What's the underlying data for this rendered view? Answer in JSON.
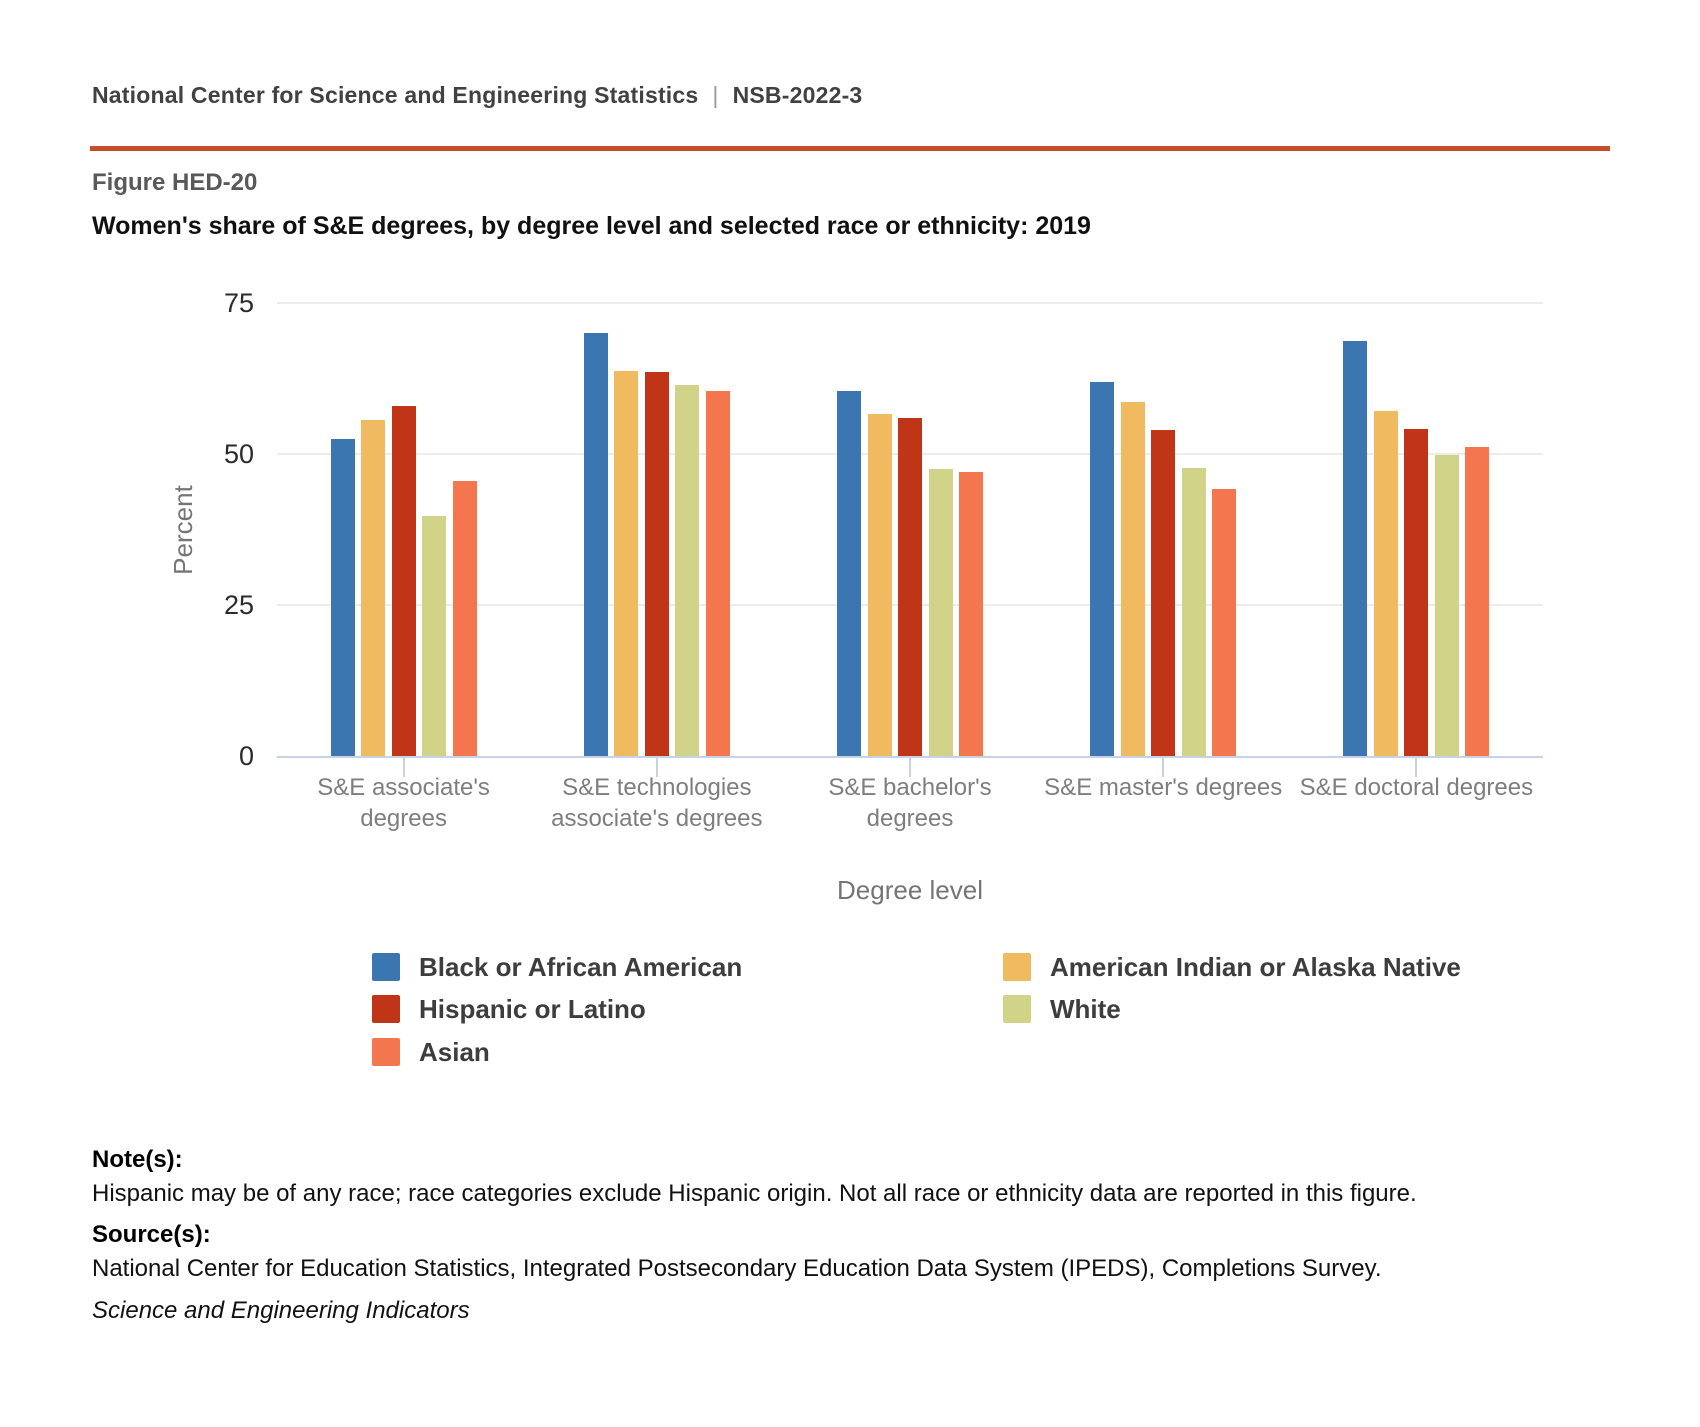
{
  "header": {
    "org": "National Center for Science and Engineering Statistics",
    "separator": "|",
    "report": "NSB-2022-3"
  },
  "accent_rule_color": "#c54e2c",
  "figure": {
    "label": "Figure HED-20",
    "title": "Women's share of S&E degrees, by degree level and selected race or ethnicity: 2019"
  },
  "chart_data": {
    "type": "bar",
    "categories": [
      "S&E associate's\ndegrees",
      "S&E technologies\nassociate's degrees",
      "S&E bachelor's\ndegrees",
      "S&E master's degrees",
      "S&E doctoral degrees"
    ],
    "series": [
      {
        "name": "Black or African American",
        "color": "#3b76b0",
        "values": [
          52.5,
          70.0,
          60.4,
          62.0,
          68.7
        ]
      },
      {
        "name": "American Indian or Alaska Native",
        "color": "#efba60",
        "values": [
          55.6,
          63.7,
          56.7,
          58.6,
          57.2
        ]
      },
      {
        "name": "Hispanic or Latino",
        "color": "#c03418",
        "values": [
          58.0,
          63.5,
          55.9,
          53.9,
          54.2
        ]
      },
      {
        "name": "White",
        "color": "#d1d389",
        "values": [
          39.8,
          61.4,
          47.5,
          47.7,
          49.8
        ]
      },
      {
        "name": "Asian",
        "color": "#f4764f",
        "values": [
          45.6,
          60.5,
          47.0,
          44.2,
          51.2
        ]
      }
    ],
    "title": "Women's share of S&E degrees, by degree level and selected race or ethnicity: 2019",
    "xlabel": "Degree level",
    "ylabel": "Percent",
    "yticks": [
      0,
      25,
      50,
      75
    ],
    "ylim": [
      0,
      75
    ],
    "grid": true,
    "legend_position": "bottom"
  },
  "notes": {
    "label": "Note(s):",
    "text": "Hispanic may be of any race; race categories exclude Hispanic origin. Not all race or ethnicity data are reported in this figure."
  },
  "sources": {
    "label": "Source(s):",
    "text": "National Center for Education Statistics, Integrated Postsecondary Education Data System (IPEDS), Completions Survey."
  },
  "attribution": "Science and Engineering Indicators"
}
